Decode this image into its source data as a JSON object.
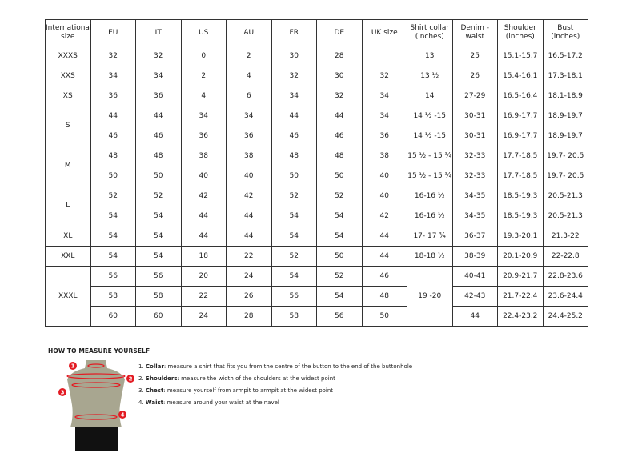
{
  "table": {
    "headers": [
      "International size",
      "EU",
      "IT",
      "US",
      "AU",
      "FR",
      "DE",
      "UK size",
      "Shirt collar (inches)",
      "Denim - waist",
      "Shoulder (inches)",
      "Bust (inches)"
    ],
    "rows": [
      {
        "size": "XXXS",
        "size_span": 1,
        "eu": "32",
        "it": "32",
        "us": "0",
        "au": "2",
        "fr": "30",
        "de": "28",
        "uk": "",
        "collar": "13",
        "collar_span": 1,
        "denim": "25",
        "shoulder": "15.1-15.7",
        "bust": "16.5-17.2"
      },
      {
        "size": "XXS",
        "size_span": 1,
        "eu": "34",
        "it": "34",
        "us": "2",
        "au": "4",
        "fr": "32",
        "de": "30",
        "uk": "32",
        "collar": "13 ½",
        "collar_span": 1,
        "denim": "26",
        "shoulder": "15.4-16.1",
        "bust": "17.3-18.1"
      },
      {
        "size": "XS",
        "size_span": 1,
        "eu": "36",
        "it": "36",
        "us": "4",
        "au": "6",
        "fr": "34",
        "de": "32",
        "uk": "34",
        "collar": "14",
        "collar_span": 1,
        "denim": "27-29",
        "shoulder": "16.5-16.4",
        "bust": "18.1-18.9"
      },
      {
        "size": "S",
        "size_span": 2,
        "eu": "44",
        "it": "44",
        "us": "34",
        "au": "34",
        "fr": "44",
        "de": "44",
        "uk": "34",
        "collar": "14 ½ -15",
        "collar_span": 1,
        "denim": "30-31",
        "shoulder": "16.9-17.7",
        "bust": "18.9-19.7"
      },
      {
        "size": null,
        "eu": "46",
        "it": "46",
        "us": "36",
        "au": "36",
        "fr": "46",
        "de": "46",
        "uk": "36",
        "collar": "14 ½ -15",
        "collar_span": 1,
        "denim": "30-31",
        "shoulder": "16.9-17.7",
        "bust": "18.9-19.7"
      },
      {
        "size": "M",
        "size_span": 2,
        "eu": "48",
        "it": "48",
        "us": "38",
        "au": "38",
        "fr": "48",
        "de": "48",
        "uk": "38",
        "collar": "15 ½ - 15 ¾",
        "collar_span": 1,
        "denim": "32-33",
        "shoulder": "17.7-18.5",
        "bust": "19.7- 20.5"
      },
      {
        "size": null,
        "eu": "50",
        "it": "50",
        "us": "40",
        "au": "40",
        "fr": "50",
        "de": "50",
        "uk": "40",
        "collar": "15 ½ - 15 ¾",
        "collar_span": 1,
        "denim": "32-33",
        "shoulder": "17.7-18.5",
        "bust": "19.7- 20.5"
      },
      {
        "size": "L",
        "size_span": 2,
        "eu": "52",
        "it": "52",
        "us": "42",
        "au": "42",
        "fr": "52",
        "de": "52",
        "uk": "40",
        "collar": "16-16 ½",
        "collar_span": 1,
        "denim": "34-35",
        "shoulder": "18.5-19.3",
        "bust": "20.5-21.3"
      },
      {
        "size": null,
        "eu": "54",
        "it": "54",
        "us": "44",
        "au": "44",
        "fr": "54",
        "de": "54",
        "uk": "42",
        "collar": "16-16 ½",
        "collar_span": 1,
        "denim": "34-35",
        "shoulder": "18.5-19.3",
        "bust": "20.5-21.3"
      },
      {
        "size": "XL",
        "size_span": 1,
        "eu": "54",
        "it": "54",
        "us": "44",
        "au": "44",
        "fr": "54",
        "de": "54",
        "uk": "44",
        "collar": "17- 17 ¾",
        "collar_span": 1,
        "denim": "36-37",
        "shoulder": "19.3-20.1",
        "bust": "21.3-22"
      },
      {
        "size": "XXL",
        "size_span": 1,
        "eu": "54",
        "it": "54",
        "us": "18",
        "au": "22",
        "fr": "52",
        "de": "50",
        "uk": "44",
        "collar": "18-18 ½",
        "collar_span": 1,
        "denim": "38-39",
        "shoulder": "20.1-20.9",
        "bust": "22-22.8"
      },
      {
        "size": "XXXL",
        "size_span": 3,
        "eu": "56",
        "it": "56",
        "us": "20",
        "au": "24",
        "fr": "54",
        "de": "52",
        "uk": "46",
        "collar": "19 -20",
        "collar_span": 3,
        "denim": "40-41",
        "shoulder": "20.9-21.7",
        "bust": "22.8-23.6"
      },
      {
        "size": null,
        "eu": "58",
        "it": "58",
        "us": "22",
        "au": "26",
        "fr": "56",
        "de": "54",
        "uk": "48",
        "collar": null,
        "denim": "42-43",
        "shoulder": "21.7-22.4",
        "bust": "23.6-24.4"
      },
      {
        "size": null,
        "eu": "60",
        "it": "60",
        "us": "24",
        "au": "28",
        "fr": "58",
        "de": "56",
        "uk": "50",
        "collar": null,
        "denim": "44",
        "shoulder": "22.4-23.2",
        "bust": "24.4-25.2"
      }
    ]
  },
  "guide": {
    "title": "HOW TO MEASURE YOURSELF",
    "markers": [
      "1",
      "2",
      "3",
      "4"
    ],
    "steps": [
      {
        "num": "1.",
        "term": "Collar",
        "text": ": measure a shirt that fits you from the centre of the button to the end of the buttonhole"
      },
      {
        "num": "2.",
        "term": "Shoulders",
        "text": ": measure the width of the shoulders at the widest point"
      },
      {
        "num": "3.",
        "term": "Chest",
        "text": ": measure yourself from armpit to armpit at the widest point"
      },
      {
        "num": "4.",
        "term": "Waist",
        "text": ": measure around your waist at the navel"
      }
    ],
    "colors": {
      "marker": "#e31b23",
      "torso": "#a8a690",
      "shorts": "#111111"
    }
  }
}
